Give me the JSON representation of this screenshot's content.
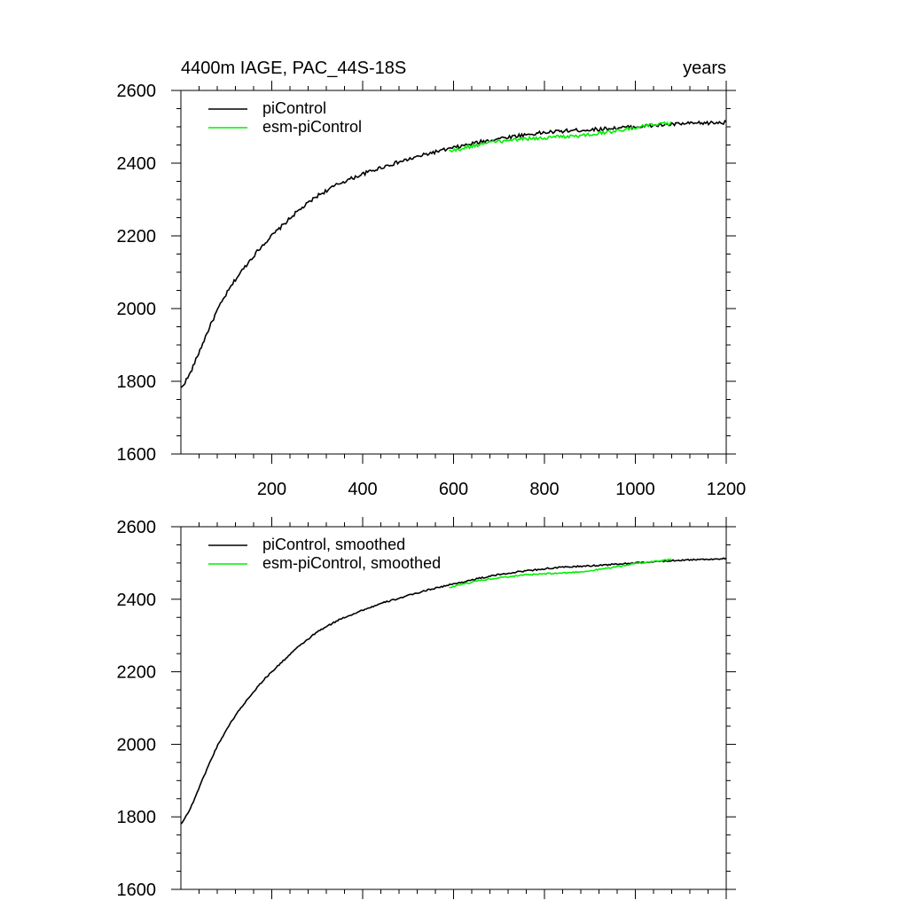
{
  "chart_data": [
    {
      "type": "line",
      "title_left": "4400m IAGE, PAC_44S-18S",
      "title_right": "years",
      "xlabel": "",
      "ylabel": "",
      "xlim": [
        0,
        1200
      ],
      "ylim": [
        1600,
        2600
      ],
      "xticks": [
        200,
        400,
        600,
        800,
        1000,
        1200
      ],
      "yticks": [
        1600,
        1800,
        2000,
        2200,
        2400,
        2600
      ],
      "show_x_tick_labels": true,
      "grid": false,
      "legend_position": "top-left",
      "series": [
        {
          "name": "piControl",
          "color": "#000000",
          "x": [
            0,
            20,
            40,
            60,
            80,
            100,
            120,
            150,
            180,
            200,
            250,
            300,
            350,
            400,
            450,
            500,
            550,
            600,
            650,
            700,
            750,
            800,
            850,
            900,
            950,
            1000,
            1050,
            1100,
            1150,
            1200
          ],
          "y": [
            1780,
            1820,
            1880,
            1940,
            1995,
            2040,
            2080,
            2130,
            2175,
            2200,
            2260,
            2310,
            2345,
            2370,
            2392,
            2410,
            2428,
            2442,
            2456,
            2468,
            2477,
            2484,
            2489,
            2492,
            2496,
            2500,
            2504,
            2508,
            2510,
            2512
          ],
          "noise": 5
        },
        {
          "name": "esm-piControl",
          "color": "#00ee00",
          "x": [
            590,
            650,
            700,
            750,
            800,
            850,
            900,
            950,
            1000,
            1050,
            1080
          ],
          "y": [
            2432,
            2450,
            2460,
            2466,
            2470,
            2473,
            2478,
            2488,
            2498,
            2506,
            2510
          ],
          "noise": 5
        }
      ]
    },
    {
      "type": "line",
      "title_left": "",
      "title_right": "",
      "xlabel": "",
      "ylabel": "",
      "xlim": [
        0,
        1200
      ],
      "ylim": [
        1600,
        2600
      ],
      "xticks": [
        200,
        400,
        600,
        800,
        1000,
        1200
      ],
      "yticks": [
        1600,
        1800,
        2000,
        2200,
        2400,
        2600
      ],
      "show_x_tick_labels": false,
      "grid": false,
      "legend_position": "top-left",
      "series": [
        {
          "name": "piControl, smoothed",
          "color": "#000000",
          "x": [
            0,
            20,
            40,
            60,
            80,
            100,
            120,
            150,
            180,
            200,
            250,
            300,
            350,
            400,
            450,
            500,
            550,
            600,
            650,
            700,
            750,
            800,
            850,
            900,
            950,
            1000,
            1050,
            1100,
            1150,
            1200
          ],
          "y": [
            1780,
            1820,
            1880,
            1940,
            1995,
            2040,
            2080,
            2130,
            2175,
            2200,
            2260,
            2310,
            2345,
            2370,
            2392,
            2410,
            2428,
            2442,
            2456,
            2468,
            2477,
            2484,
            2489,
            2492,
            2496,
            2500,
            2504,
            2508,
            2510,
            2512
          ],
          "noise": 2
        },
        {
          "name": "esm-piControl, smoothed",
          "color": "#00ee00",
          "x": [
            590,
            650,
            700,
            750,
            800,
            850,
            900,
            950,
            1000,
            1050,
            1080
          ],
          "y": [
            2432,
            2450,
            2460,
            2466,
            2470,
            2473,
            2478,
            2488,
            2498,
            2506,
            2510
          ],
          "noise": 2
        }
      ]
    }
  ]
}
